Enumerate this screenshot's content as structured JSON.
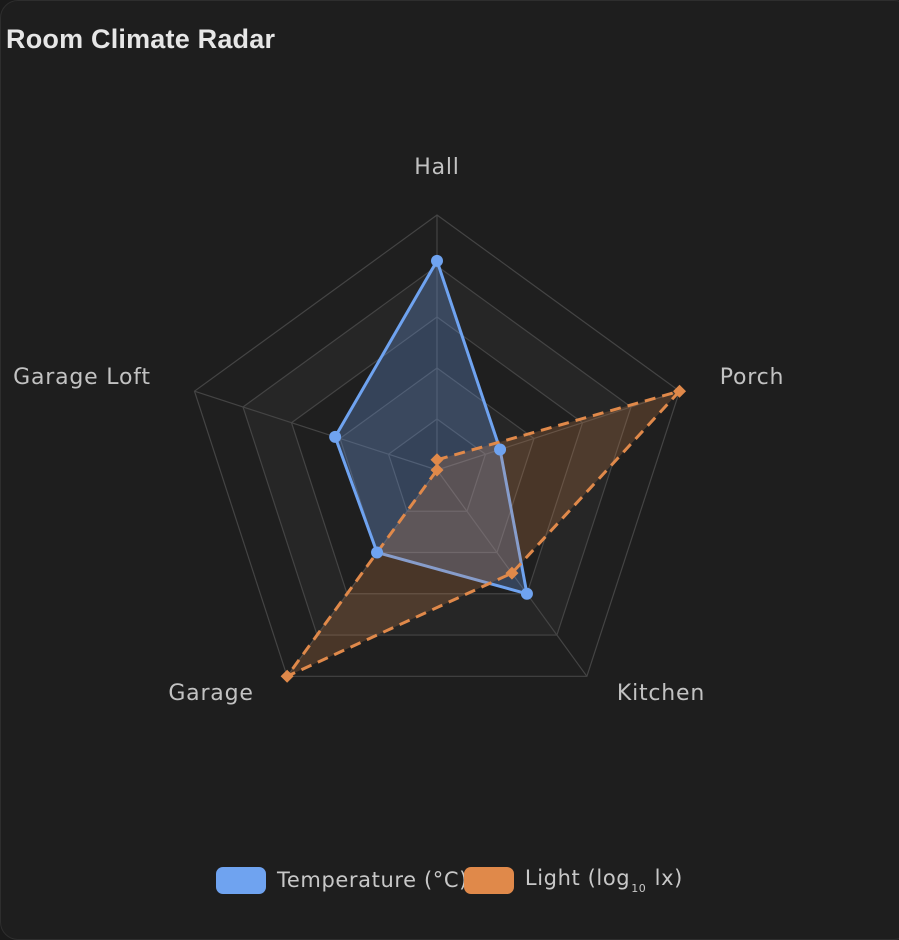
{
  "chart_data": {
    "type": "radar",
    "title": "Room Climate Radar",
    "axes": [
      "Hall",
      "Porch",
      "Kitchen",
      "Garage",
      "Garage Loft"
    ],
    "ring_levels": 5,
    "series": [
      {
        "name": "Temperature (°C)",
        "values": [
          0.82,
          0.26,
          0.6,
          0.4,
          0.42
        ],
        "color": "#6fa3f0",
        "line": "solid",
        "marker": "circle"
      },
      {
        "name_main": "Light (log",
        "name_sub": "10",
        "name_tail": " lx)",
        "values": [
          0.04,
          1.0,
          0.5,
          1.0,
          0.0
        ],
        "color": "#e0894a",
        "line": "dashed",
        "marker": "diamond"
      }
    ],
    "legend_position": "bottom"
  }
}
